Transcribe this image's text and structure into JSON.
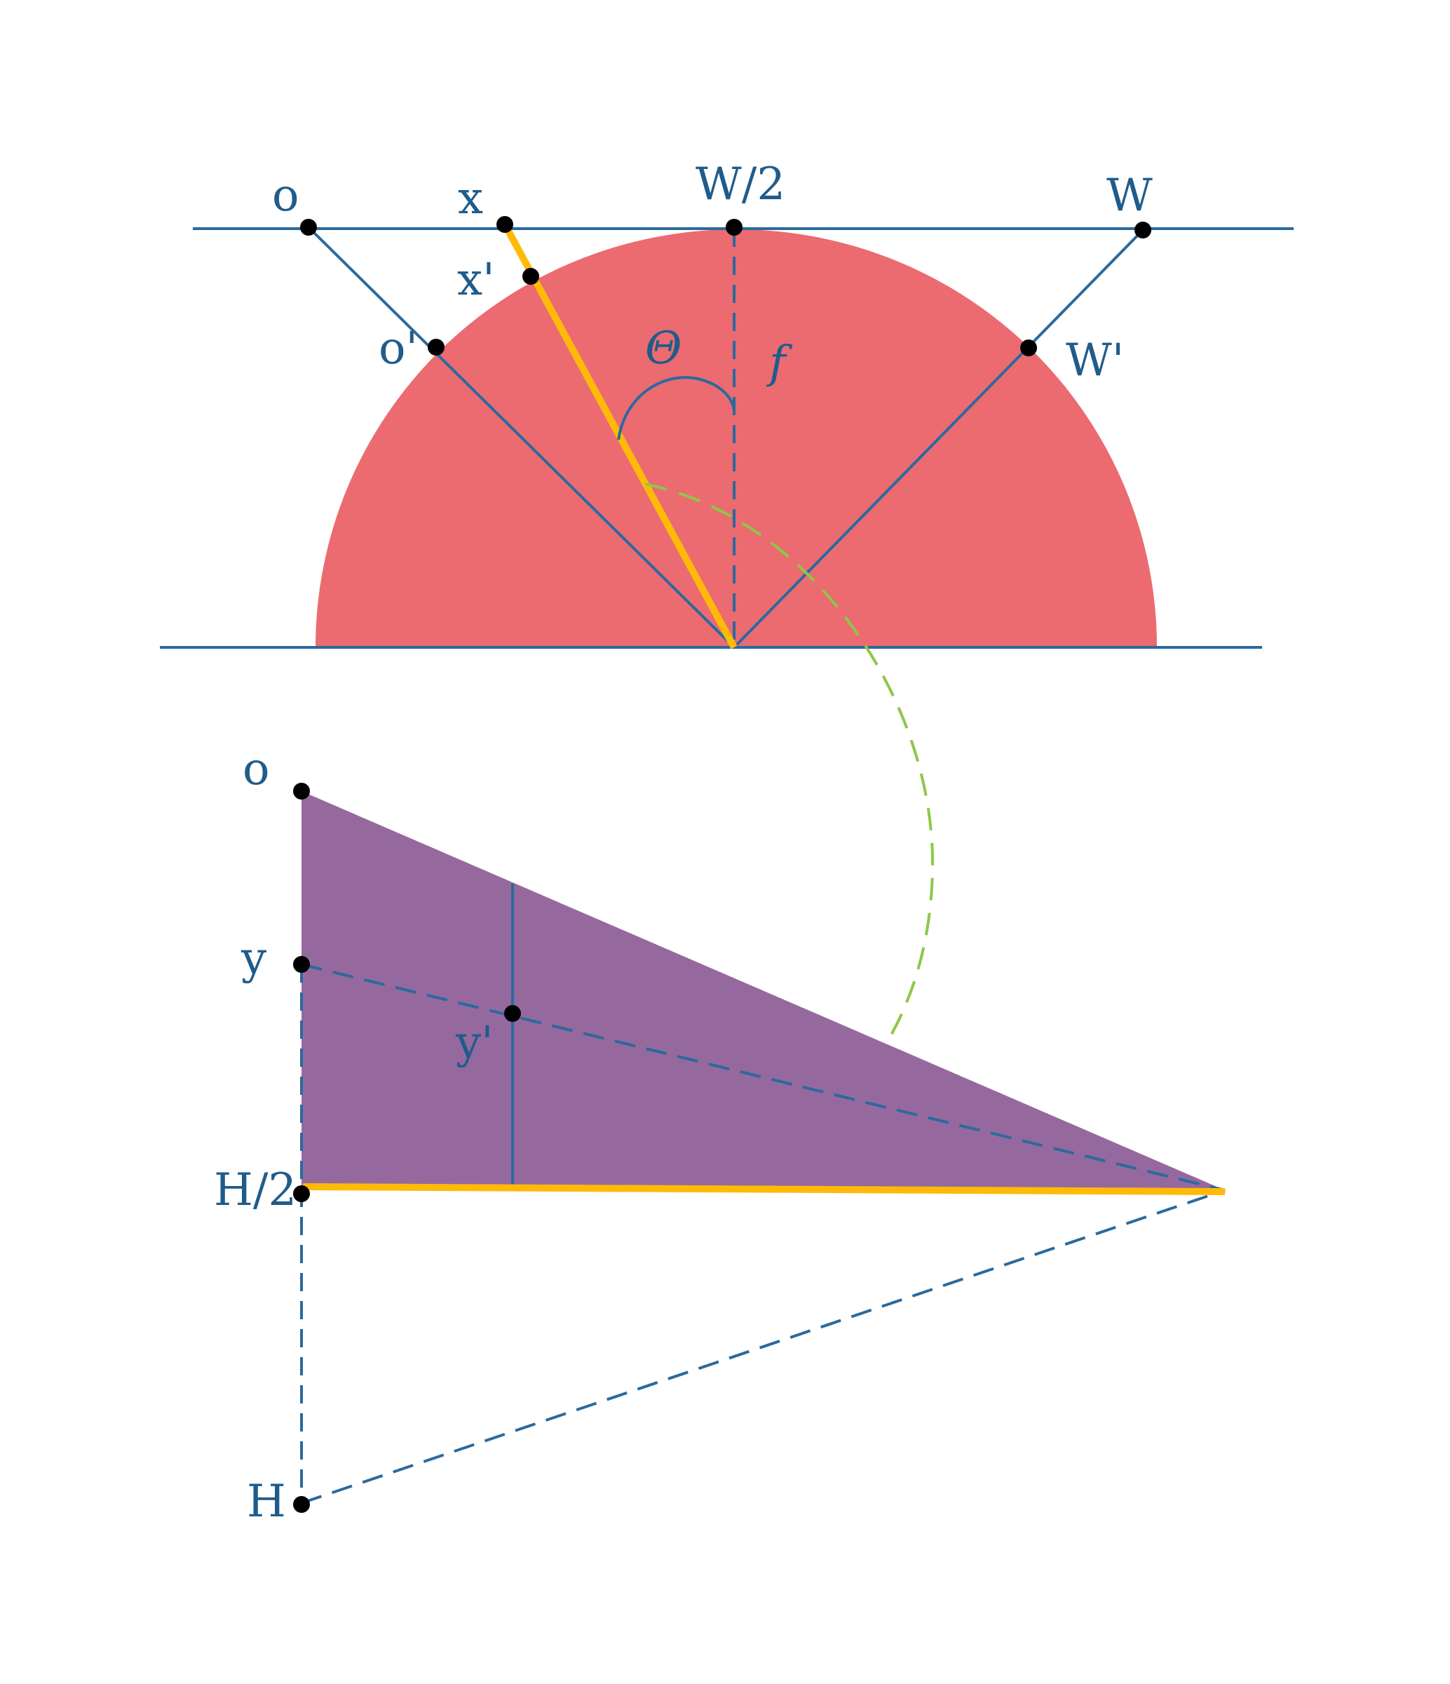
{
  "colors": {
    "line": "#2a6a9e",
    "label": "#1f5c8b",
    "semicircle": "#eb6b70",
    "triangle": "#96699e",
    "highlight": "#ffba08",
    "arrow": "#8ec747",
    "point": "#000000"
  },
  "top_labels": {
    "o": "o",
    "x": "x",
    "w_half": "W/2",
    "w": "W",
    "x_prime": "x'",
    "o_prime": "o'",
    "theta": "Θ",
    "f": "f",
    "w_prime": "W'"
  },
  "bottom_labels": {
    "o": "o",
    "y": "y",
    "y_prime": "y'",
    "h_half": "H/2",
    "h": "H"
  }
}
